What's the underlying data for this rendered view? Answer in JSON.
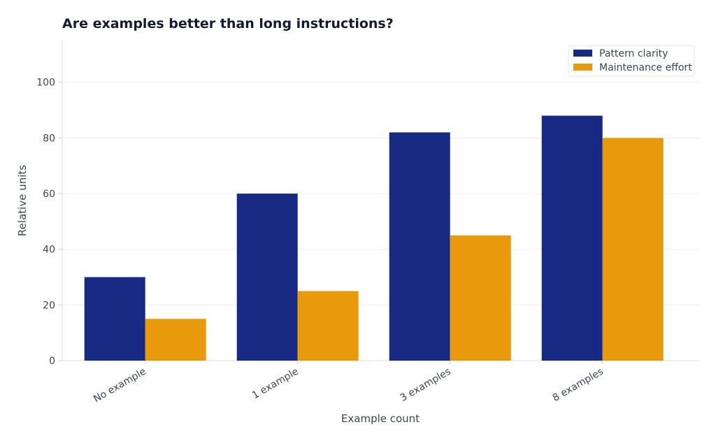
{
  "chart_data": {
    "type": "bar",
    "title": "Are examples better than long instructions?",
    "xlabel": "Example count",
    "ylabel": "Relative units",
    "categories": [
      "No example",
      "1 example",
      "3 examples",
      "8 examples"
    ],
    "series": [
      {
        "name": "Pattern clarity",
        "values": [
          30,
          60,
          82,
          88
        ],
        "color": "#172983"
      },
      {
        "name": "Maintenance effort",
        "values": [
          15,
          25,
          45,
          80
        ],
        "color": "#e89a0c"
      }
    ],
    "ylim": [
      0,
      115
    ],
    "yticks": [
      0,
      20,
      40,
      60,
      80,
      100
    ],
    "grid": true,
    "legend_position": "top-right"
  }
}
